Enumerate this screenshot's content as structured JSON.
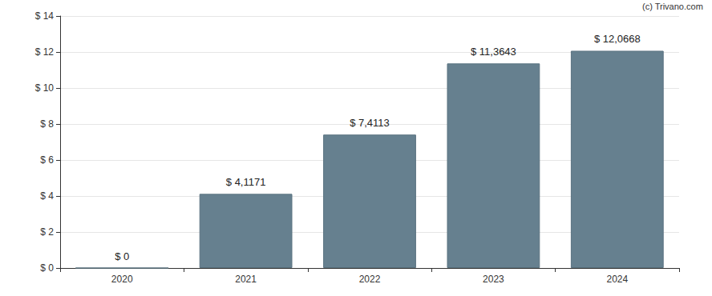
{
  "chart_data": {
    "type": "bar",
    "annotations": [
      "(c) Trivano.com"
    ],
    "categories": [
      "2020",
      "2021",
      "2022",
      "2023",
      "2024"
    ],
    "values": [
      0,
      4.1171,
      7.4113,
      11.3643,
      12.0668
    ],
    "value_labels": [
      "$ 0",
      "$ 4,1171",
      "$ 7,4113",
      "$ 11,3643",
      "$ 12,0668"
    ],
    "data_labels": true,
    "color": "#66808f",
    "ylim": [
      0,
      14
    ],
    "yticks": [
      {
        "value": 0,
        "label": "$ 0"
      },
      {
        "value": 2,
        "label": "$ 2"
      },
      {
        "value": 4,
        "label": "$ 4"
      },
      {
        "value": 6,
        "label": "$ 6"
      },
      {
        "value": 8,
        "label": "$ 8"
      },
      {
        "value": 10,
        "label": "$ 10"
      },
      {
        "value": 12,
        "label": "$ 12"
      },
      {
        "value": 14,
        "label": "$ 14"
      }
    ],
    "grid": true
  }
}
